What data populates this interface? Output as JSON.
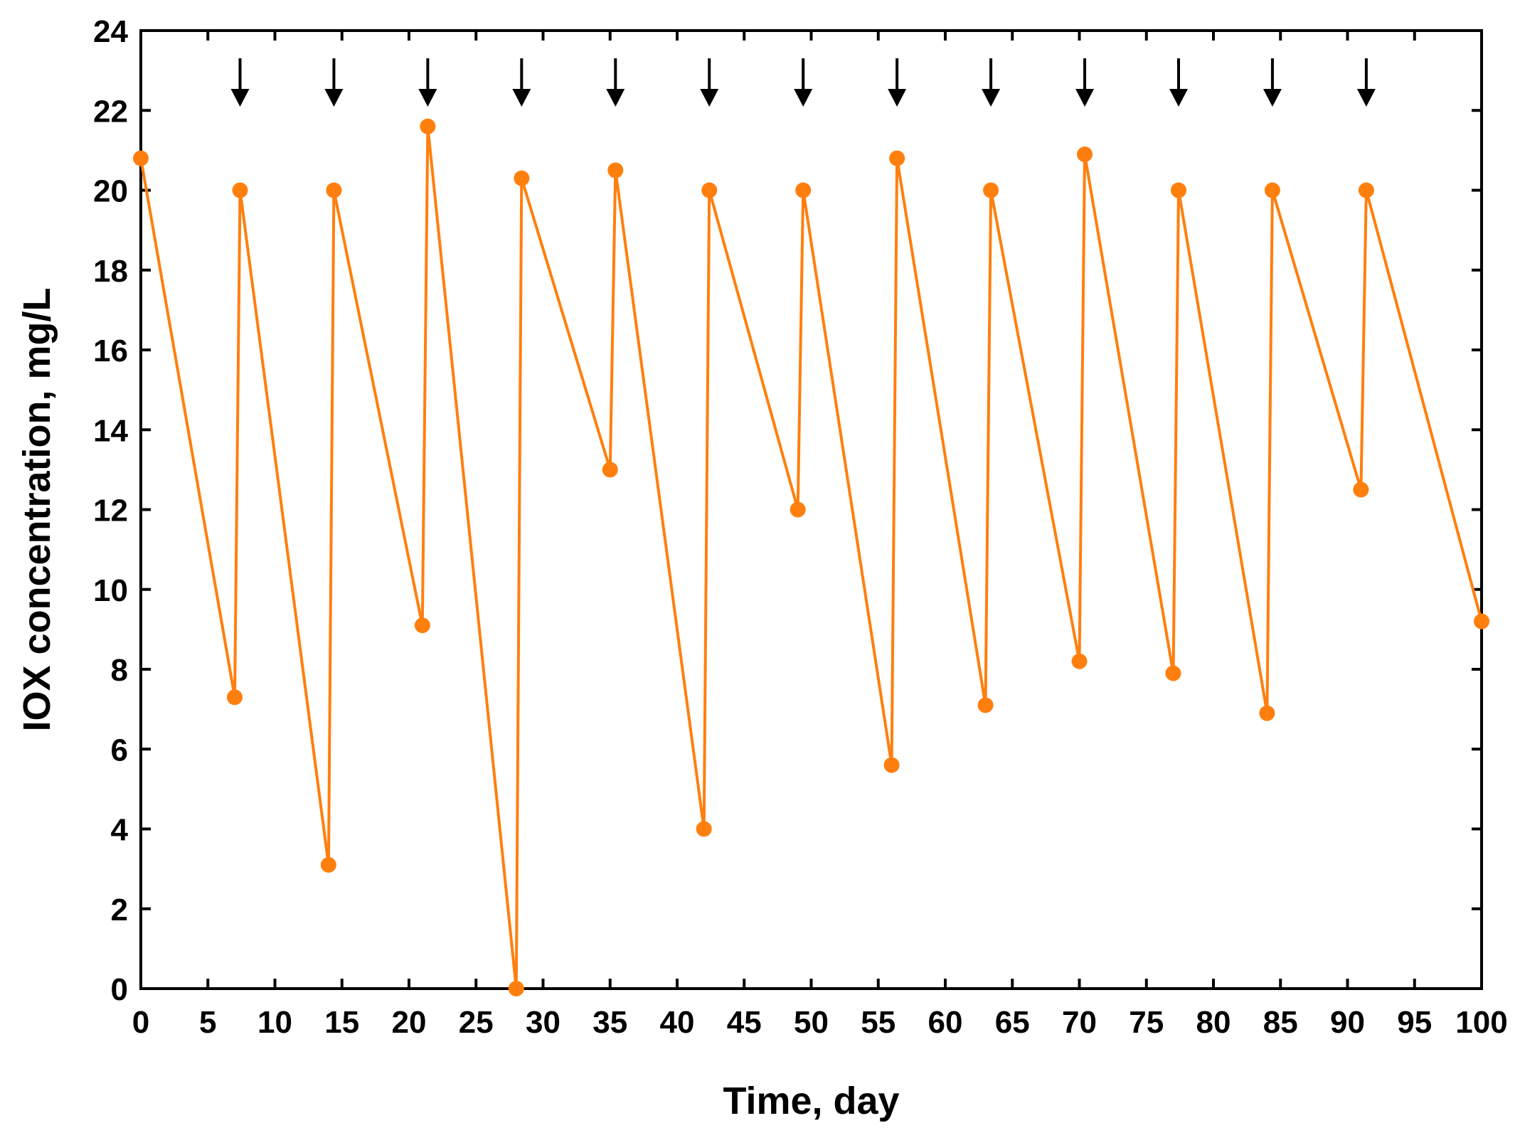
{
  "chart_data": {
    "type": "line",
    "title": "",
    "xlabel": "Time, day",
    "ylabel": "IOX concentration, mg/L",
    "xlim": [
      0,
      100
    ],
    "ylim": [
      0,
      24
    ],
    "xticks": [
      0,
      5,
      10,
      15,
      20,
      25,
      30,
      35,
      40,
      45,
      50,
      55,
      60,
      65,
      70,
      75,
      80,
      85,
      90,
      95,
      100
    ],
    "yticks": [
      0,
      2,
      4,
      6,
      8,
      10,
      12,
      14,
      16,
      18,
      20,
      22,
      24
    ],
    "grid": false,
    "legend": "none",
    "series": [
      {
        "color": "#ff7f0e",
        "marker": "circle",
        "x": [
          0,
          7,
          7.4,
          14,
          14.4,
          21,
          21.4,
          28,
          28.4,
          35,
          35.4,
          42,
          42.4,
          49,
          49.4,
          56,
          56.4,
          63,
          63.4,
          70,
          70.4,
          77,
          77.4,
          84,
          84.4,
          91,
          91.4,
          100
        ],
        "y": [
          20.8,
          7.3,
          20.0,
          3.1,
          20.0,
          9.1,
          21.6,
          0.0,
          20.3,
          13.0,
          20.5,
          4.0,
          20.0,
          12.0,
          20.0,
          5.6,
          20.8,
          7.1,
          20.0,
          8.2,
          20.9,
          7.9,
          20.0,
          6.9,
          20.0,
          12.5,
          20.0,
          9.2
        ]
      }
    ],
    "annotations": {
      "type": "down-arrow",
      "color": "#000000",
      "x": [
        7.4,
        14.4,
        21.4,
        28.4,
        35.4,
        42.4,
        49.4,
        56.4,
        63.4,
        70.4,
        77.4,
        84.4,
        91.4
      ]
    }
  }
}
